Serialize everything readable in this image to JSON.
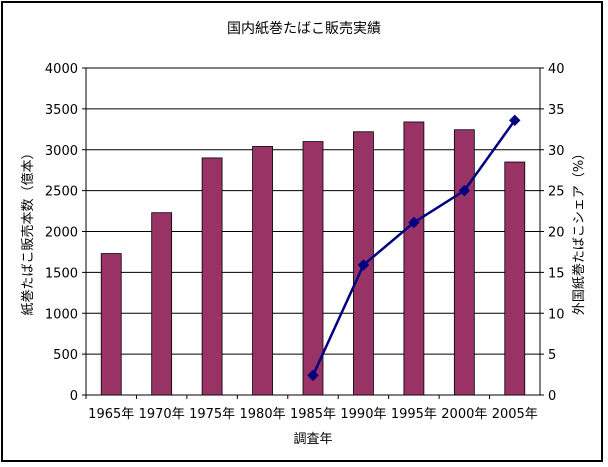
{
  "chart_data": {
    "type": "bar+line",
    "title": "国内紙巻たばこ販売実績",
    "xlabel": "調査年",
    "ylabel_left": "紙巻たばこ販売本数（億本）",
    "ylabel_right": "外国紙巻たばこシェア（%）",
    "categories": [
      "1965年",
      "1970年",
      "1975年",
      "1980年",
      "1985年",
      "1990年",
      "1995年",
      "2000年",
      "2005年"
    ],
    "ylim_left": [
      0,
      4000
    ],
    "yticks_left": [
      "0",
      "500",
      "1000",
      "1500",
      "2000",
      "2500",
      "3000",
      "3500",
      "4000"
    ],
    "ylim_right": [
      0,
      40
    ],
    "yticks_right": [
      "0",
      "5",
      "10",
      "15",
      "20",
      "25",
      "30",
      "35",
      "40"
    ],
    "series": [
      {
        "kind": "bar",
        "axis": "left",
        "color": "#993366",
        "values": [
          1730,
          2230,
          2900,
          3040,
          3100,
          3220,
          3340,
          3245,
          2850
        ]
      },
      {
        "kind": "line",
        "axis": "right",
        "color": "#000080",
        "marker": "diamond",
        "values": [
          null,
          null,
          null,
          null,
          2.4,
          15.9,
          21.1,
          25.0,
          33.6
        ]
      }
    ],
    "grid": true
  }
}
